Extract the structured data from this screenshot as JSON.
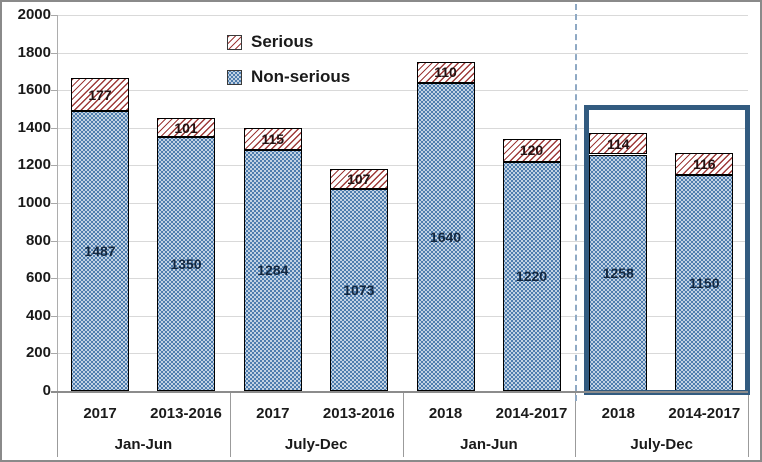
{
  "chart_data": {
    "type": "bar",
    "stacked": true,
    "title": "",
    "xlabel": "",
    "ylabel": "",
    "y_axis": {
      "min": 0,
      "max": 2000,
      "step": 200,
      "tick_labels": [
        "0",
        "200",
        "400",
        "600",
        "800",
        "1000",
        "1200",
        "1400",
        "1600",
        "1800",
        "2000"
      ]
    },
    "legend": [
      {
        "label": "Serious",
        "pattern": "red-diagonal-hatch"
      },
      {
        "label": "Non-serious",
        "pattern": "blue-dotted"
      }
    ],
    "series_order_bottom_to_top": [
      "Non-serious",
      "Serious"
    ],
    "groups": [
      {
        "period": "Jan-Jun",
        "bars": [
          {
            "year": "2017",
            "non_serious": 1487,
            "serious": 177
          },
          {
            "year": "2013-2016",
            "non_serious": 1350,
            "serious": 101
          }
        ]
      },
      {
        "period": "July-Dec",
        "bars": [
          {
            "year": "2017",
            "non_serious": 1284,
            "serious": 115
          },
          {
            "year": "2013-2016",
            "non_serious": 1073,
            "serious": 107
          }
        ]
      },
      {
        "period": "Jan-Jun",
        "bars": [
          {
            "year": "2018",
            "non_serious": 1640,
            "serious": 110
          },
          {
            "year": "2014-2017",
            "non_serious": 1220,
            "serious": 120
          }
        ]
      },
      {
        "period": "July-Dec",
        "bars": [
          {
            "year": "2018",
            "non_serious": 1258,
            "serious": 114
          },
          {
            "year": "2014-2017",
            "non_serious": 1150,
            "serious": 116
          }
        ]
      }
    ],
    "annotations": {
      "dashed_separator_before_group_index": 3,
      "highlight_box_group_index": 3,
      "highlight_box_top_value": 1520
    },
    "layout_hints": {
      "grid": "horizontal",
      "legend_position": "top-center-left"
    },
    "colors": {
      "non_serious_fill": "#4e7dae",
      "serious_stripe": "#9e3a38",
      "highlight_box": "#325b80",
      "dashed_line": "#8fa9c4",
      "gridline": "#d9d9d9",
      "axis_line": "#8c8c8c",
      "bar_border": "#000000"
    }
  }
}
